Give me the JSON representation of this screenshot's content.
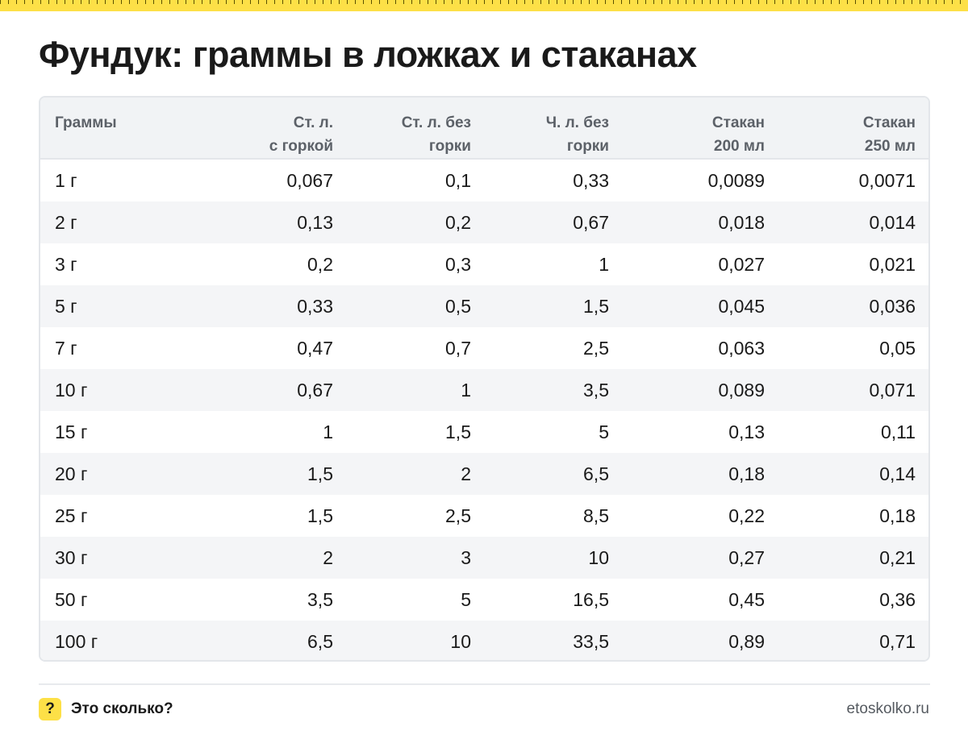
{
  "page": {
    "title": "Фундук: граммы в ложках и стаканах"
  },
  "table": {
    "headers": [
      [
        "Граммы",
        ""
      ],
      [
        "Ст. л.",
        "с горкой"
      ],
      [
        "Ст. л. без",
        "горки"
      ],
      [
        "Ч. л. без",
        "горки"
      ],
      [
        "Стакан",
        "200 мл"
      ],
      [
        "Стакан",
        "250 мл"
      ]
    ],
    "rows": [
      [
        "1 г",
        "0,067",
        "0,1",
        "0,33",
        "0,0089",
        "0,0071"
      ],
      [
        "2 г",
        "0,13",
        "0,2",
        "0,67",
        "0,018",
        "0,014"
      ],
      [
        "3 г",
        "0,2",
        "0,3",
        "1",
        "0,027",
        "0,021"
      ],
      [
        "5 г",
        "0,33",
        "0,5",
        "1,5",
        "0,045",
        "0,036"
      ],
      [
        "7 г",
        "0,47",
        "0,7",
        "2,5",
        "0,063",
        "0,05"
      ],
      [
        "10 г",
        "0,67",
        "1",
        "3,5",
        "0,089",
        "0,071"
      ],
      [
        "15 г",
        "1",
        "1,5",
        "5",
        "0,13",
        "0,11"
      ],
      [
        "20 г",
        "1,5",
        "2",
        "6,5",
        "0,18",
        "0,14"
      ],
      [
        "25 г",
        "1,5",
        "2,5",
        "8,5",
        "0,22",
        "0,18"
      ],
      [
        "30 г",
        "2",
        "3",
        "10",
        "0,27",
        "0,21"
      ],
      [
        "50 г",
        "3,5",
        "5",
        "16,5",
        "0,45",
        "0,36"
      ],
      [
        "100 г",
        "6,5",
        "10",
        "33,5",
        "0,89",
        "0,71"
      ]
    ]
  },
  "footer": {
    "badge_glyph": "?",
    "brand": "Это сколько?",
    "site": "etoskolko.ru"
  },
  "colors": {
    "accent": "#fde047",
    "header_bg": "#f1f3f5",
    "row_alt_bg": "#f4f5f7",
    "border": "#e3e6ea"
  }
}
